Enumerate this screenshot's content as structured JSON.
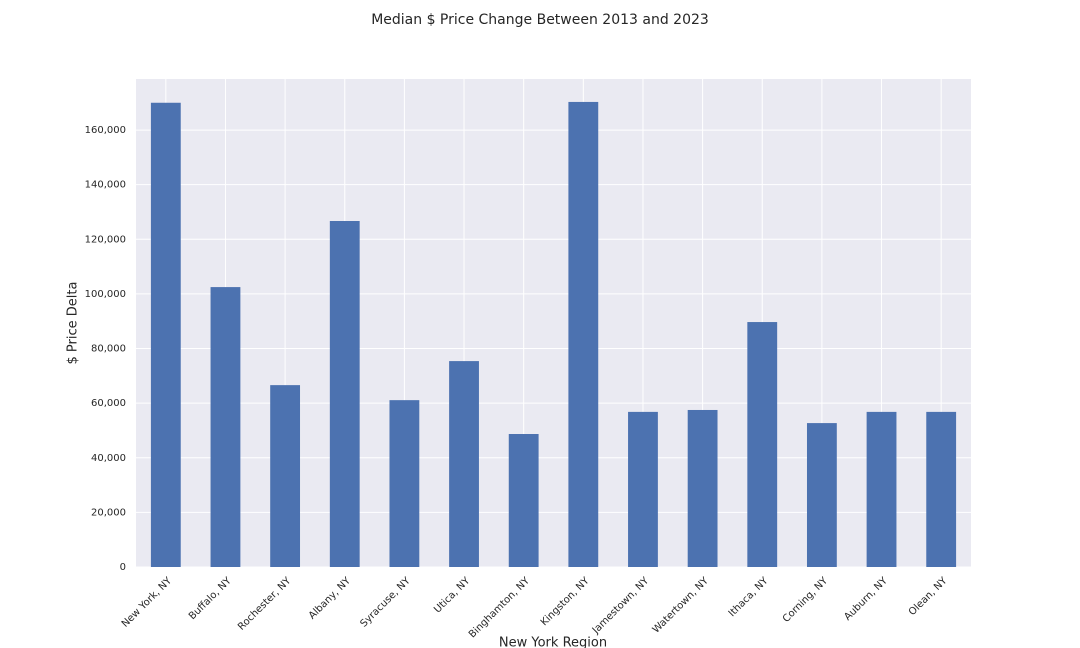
{
  "chart_data": {
    "type": "bar",
    "title": "Median $ Price Change Between 2013 and 2023",
    "x_label": "New York Region",
    "y_label": "$ Price Delta",
    "categories": [
      "New York, NY",
      "Buffalo, NY",
      "Rochester, NY",
      "Albany, NY",
      "Syracuse, NY",
      "Utica, NY",
      "Binghamton, NY",
      "Kingston, NY",
      "Jamestown, NY",
      "Watertown, NY",
      "Ithaca, NY",
      "Corning, NY",
      "Auburn, NY",
      "Olean, NY"
    ],
    "values": [
      170000,
      102500,
      66600,
      126700,
      61100,
      75400,
      48700,
      170300,
      56800,
      57500,
      89700,
      52700,
      56800,
      56800
    ],
    "color": "#4c72b0",
    "ylim": [
      0,
      178700
    ],
    "yticks": [
      0,
      {
        "value": 20000,
        "label": "20,000"
      },
      {
        "value": 40000,
        "label": "40,000"
      },
      {
        "value": 60000,
        "label": "60,000"
      },
      {
        "value": 80000,
        "label": "80,000"
      },
      {
        "value": 100000,
        "label": "100,000"
      },
      {
        "value": 120000,
        "label": "120,000"
      },
      {
        "value": 140000,
        "label": "140,000"
      },
      {
        "value": 160000,
        "label": "160,000"
      }
    ],
    "grid": true
  }
}
